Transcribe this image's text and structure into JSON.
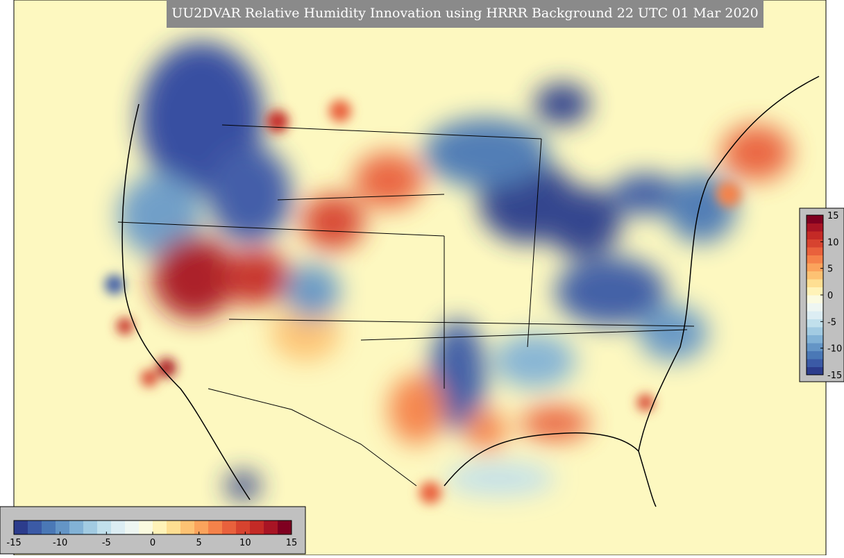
{
  "title": "UU2DVAR Relative Humidity Innovation using HRRR Background 22 UTC 01 Mar 2020",
  "colormap": [
    "#2c3c8c",
    "#3b5aa6",
    "#4a78b6",
    "#6495c6",
    "#82b2d6",
    "#a2cbe2",
    "#c1e0ec",
    "#dcedf3",
    "#eef6f2",
    "#fbfbe0",
    "#fff3b8",
    "#fedf92",
    "#fdc273",
    "#fba35c",
    "#f5824a",
    "#e9613c",
    "#d7432f",
    "#c42a26",
    "#a81424",
    "#7f0020"
  ],
  "colorbars": [
    {
      "orientation": "horizontal",
      "lim": [
        -15,
        15
      ],
      "ticks": [
        -15,
        -10,
        -5,
        0,
        5,
        10,
        15
      ]
    },
    {
      "orientation": "vertical",
      "lim": [
        -15,
        15
      ],
      "ticks": [
        -15,
        -10,
        -5,
        0,
        5,
        10,
        15
      ]
    }
  ]
}
